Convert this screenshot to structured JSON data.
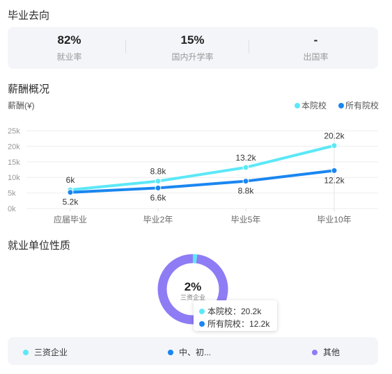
{
  "sections": {
    "graduation_title": "毕业去向",
    "salary_title": "薪酬概况",
    "employer_title": "就业单位性质"
  },
  "stats": [
    {
      "value": "82%",
      "label": "就业率"
    },
    {
      "value": "15%",
      "label": "国内升学率"
    },
    {
      "value": "-",
      "label": "出国率"
    }
  ],
  "salary_unit_label": "薪酬(¥)",
  "colors": {
    "this_school": "#5ce8f7",
    "all_schools": "#1a86f0",
    "other": "#8e7cf5",
    "panel": "#f4f5f9"
  },
  "chart_data": {
    "type": "line",
    "categories": [
      "应届毕业",
      "毕业2年",
      "毕业5年",
      "毕业10年"
    ],
    "y_ticks": [
      "25k",
      "20k",
      "15k",
      "10k",
      "5k",
      "0k"
    ],
    "ylim": [
      0,
      25
    ],
    "grid": true,
    "legend_position": "top-right",
    "series": [
      {
        "name": "本院校",
        "values": [
          6,
          8.8,
          13.2,
          20.2
        ],
        "labels": [
          "6k",
          "8.8k",
          "13.2k",
          "20.2k"
        ]
      },
      {
        "name": "所有院校",
        "values": [
          5.2,
          6.6,
          8.8,
          12.2
        ],
        "labels": [
          "5.2k",
          "6.6k",
          "8.8k",
          "12.2k"
        ]
      }
    ]
  },
  "donut": {
    "center_value": "2%",
    "center_label": "三资企业",
    "slices": [
      {
        "name": "三资企业",
        "value": 2,
        "color": "#5ce8f7"
      },
      {
        "name": "中、初...",
        "value": 0,
        "color": "#1a86f0"
      },
      {
        "name": "其他",
        "value": 98,
        "color": "#8e7cf5"
      }
    ]
  },
  "tooltip": {
    "row1": "本院校：20.2k",
    "row2": "所有院校：12.2k"
  },
  "bottom_legend": [
    "三资企业",
    "中、初...",
    "其他"
  ]
}
